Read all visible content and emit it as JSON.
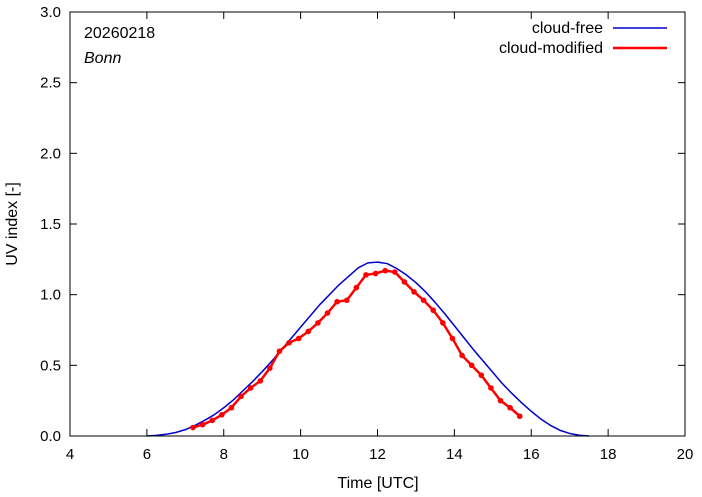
{
  "chart_data": {
    "type": "line",
    "title": "",
    "xlabel": "Time  [UTC]",
    "ylabel": "UV index  [-]",
    "xlim": [
      4,
      20
    ],
    "ylim": [
      0,
      3.0
    ],
    "x_ticks": [
      4,
      6,
      8,
      10,
      12,
      14,
      16,
      18,
      20
    ],
    "x_tick_labels": [
      "4",
      "6",
      "8",
      "10",
      "12",
      "14",
      "16",
      "18",
      "20"
    ],
    "y_ticks": [
      0,
      0.5,
      1.0,
      1.5,
      2.0,
      2.5,
      3.0
    ],
    "y_tick_labels": [
      "0.0",
      "0.5",
      "1.0",
      "1.5",
      "2.0",
      "2.5",
      "3.0"
    ],
    "grid": false,
    "legend_position": "top-right",
    "annotations": {
      "date": "20260218",
      "location": "Bonn"
    },
    "series": [
      {
        "name": "cloud-free",
        "color": "#0000cc",
        "markers": false,
        "x": [
          6.0,
          6.25,
          6.5,
          6.75,
          7.0,
          7.25,
          7.5,
          7.75,
          8.0,
          8.25,
          8.5,
          8.75,
          9.0,
          9.25,
          9.5,
          9.75,
          10.0,
          10.25,
          10.5,
          10.75,
          11.0,
          11.25,
          11.5,
          11.75,
          12.0,
          12.25,
          12.5,
          12.75,
          13.0,
          13.25,
          13.5,
          13.75,
          14.0,
          14.25,
          14.5,
          14.75,
          15.0,
          15.25,
          15.5,
          15.75,
          16.0,
          16.25,
          16.5,
          16.75,
          17.0,
          17.25,
          17.5
        ],
        "y": [
          0.0,
          0.004,
          0.012,
          0.025,
          0.045,
          0.075,
          0.11,
          0.15,
          0.2,
          0.255,
          0.32,
          0.385,
          0.455,
          0.53,
          0.61,
          0.69,
          0.77,
          0.85,
          0.93,
          1.0,
          1.07,
          1.13,
          1.19,
          1.225,
          1.23,
          1.22,
          1.185,
          1.14,
          1.085,
          1.02,
          0.945,
          0.865,
          0.78,
          0.695,
          0.61,
          0.53,
          0.45,
          0.37,
          0.3,
          0.235,
          0.175,
          0.12,
          0.075,
          0.04,
          0.018,
          0.005,
          0.0
        ]
      },
      {
        "name": "cloud-modified",
        "color": "#ff0000",
        "markers": true,
        "x": [
          7.2,
          7.45,
          7.7,
          7.95,
          8.2,
          8.45,
          8.7,
          8.95,
          9.2,
          9.45,
          9.7,
          9.95,
          10.2,
          10.45,
          10.7,
          10.95,
          11.2,
          11.45,
          11.7,
          11.95,
          12.2,
          12.45,
          12.7,
          12.95,
          13.2,
          13.45,
          13.7,
          13.95,
          14.2,
          14.45,
          14.7,
          14.95,
          15.2,
          15.45,
          15.7
        ],
        "y": [
          0.06,
          0.08,
          0.11,
          0.15,
          0.2,
          0.28,
          0.34,
          0.39,
          0.48,
          0.6,
          0.66,
          0.69,
          0.74,
          0.8,
          0.87,
          0.95,
          0.96,
          1.05,
          1.14,
          1.15,
          1.17,
          1.16,
          1.09,
          1.02,
          0.96,
          0.89,
          0.8,
          0.69,
          0.57,
          0.5,
          0.43,
          0.34,
          0.25,
          0.2,
          0.14
        ]
      }
    ]
  }
}
